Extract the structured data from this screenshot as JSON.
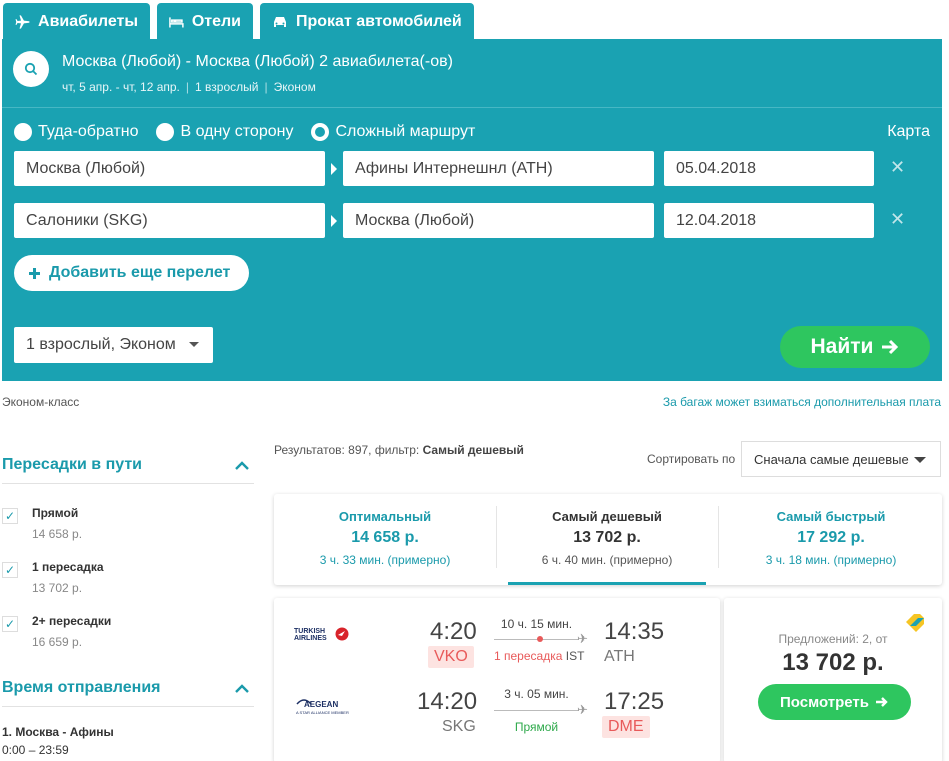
{
  "tabs": [
    {
      "label": "Авиабилеты",
      "icon": "plane-icon"
    },
    {
      "label": "Отели",
      "icon": "bed-icon"
    },
    {
      "label": "Прокат автомобилей",
      "icon": "car-icon"
    }
  ],
  "summary": {
    "title": "Москва (Любой) - Москва (Любой) 2 авиабилета(-ов)",
    "dates": "чт, 5 апр. - чт, 12 апр.",
    "passengers": "1 взрослый",
    "cabin": "Эконом"
  },
  "trip_types": [
    {
      "label": "Туда-обратно",
      "selected": false
    },
    {
      "label": "В одну сторону",
      "selected": false
    },
    {
      "label": "Сложный маршрут",
      "selected": true
    }
  ],
  "map_link": "Карта",
  "legs": [
    {
      "from": "Москва (Любой)",
      "to": "Афины Интернешнл (ATH)",
      "date": "05.04.2018"
    },
    {
      "from": "Салоники (SKG)",
      "to": "Москва (Любой)",
      "date": "12.04.2018"
    }
  ],
  "add_flight_label": "Добавить еще перелет",
  "passengers_select": "1 взрослый, Эконом",
  "find_label": "Найти",
  "econom_note": "Эконом-класс",
  "baggage_note": "За багаж может взиматься дополнительная плата",
  "sidebar": {
    "stops_title": "Пересадки в пути",
    "stops": [
      {
        "label": "Прямой",
        "price": "14 658 р.",
        "checked": true
      },
      {
        "label": "1 пересадка",
        "price": "13 702 р.",
        "checked": true
      },
      {
        "label": "2+ пересадки",
        "price": "16 659 р.",
        "checked": true
      }
    ],
    "departure_title": "Время отправления",
    "departure_route": "1. Москва - Афины",
    "departure_range": "0:00 – 23:59"
  },
  "results": {
    "count_prefix": "Результатов: 897, фильтр:",
    "filter_name": "Самый дешевый",
    "sort_label": "Сортировать по",
    "sort_value": "Сначала самые дешевые"
  },
  "sort_tabs": [
    {
      "title": "Оптимальный",
      "price": "14 658 р.",
      "duration": "3 ч. 33 мин. (примерно)",
      "active": false
    },
    {
      "title": "Самый дешевый",
      "price": "13 702 р.",
      "duration": "6 ч. 40 мин. (примерно)",
      "active": true
    },
    {
      "title": "Самый быстрый",
      "price": "17 292 р.",
      "duration": "3 ч. 18 мин. (примерно)",
      "active": false
    }
  ],
  "flight": {
    "segments": [
      {
        "airline": "TURKISH AIRLINES",
        "dep_time": "4:20",
        "dep_airport": "VKO",
        "duration": "10 ч. 15 мин.",
        "stops_text": "1 пересадка",
        "stop_airport": "IST",
        "arr_time": "14:35",
        "arr_airport": "ATH"
      },
      {
        "airline": "AEGEAN",
        "airline_sub": "A STAR ALLIANCE MEMBER",
        "dep_time": "14:20",
        "dep_airport": "SKG",
        "duration": "3 ч. 05 мин.",
        "stops_text": "Прямой",
        "arr_time": "17:25",
        "arr_airport": "DME"
      }
    ],
    "offers": "Предложений: 2, от",
    "price": "13 702 р.",
    "view_label": "Посмотреть"
  },
  "colors": {
    "teal": "#1aa2b2",
    "green": "#2ec65f",
    "red": "#e85a5a"
  }
}
